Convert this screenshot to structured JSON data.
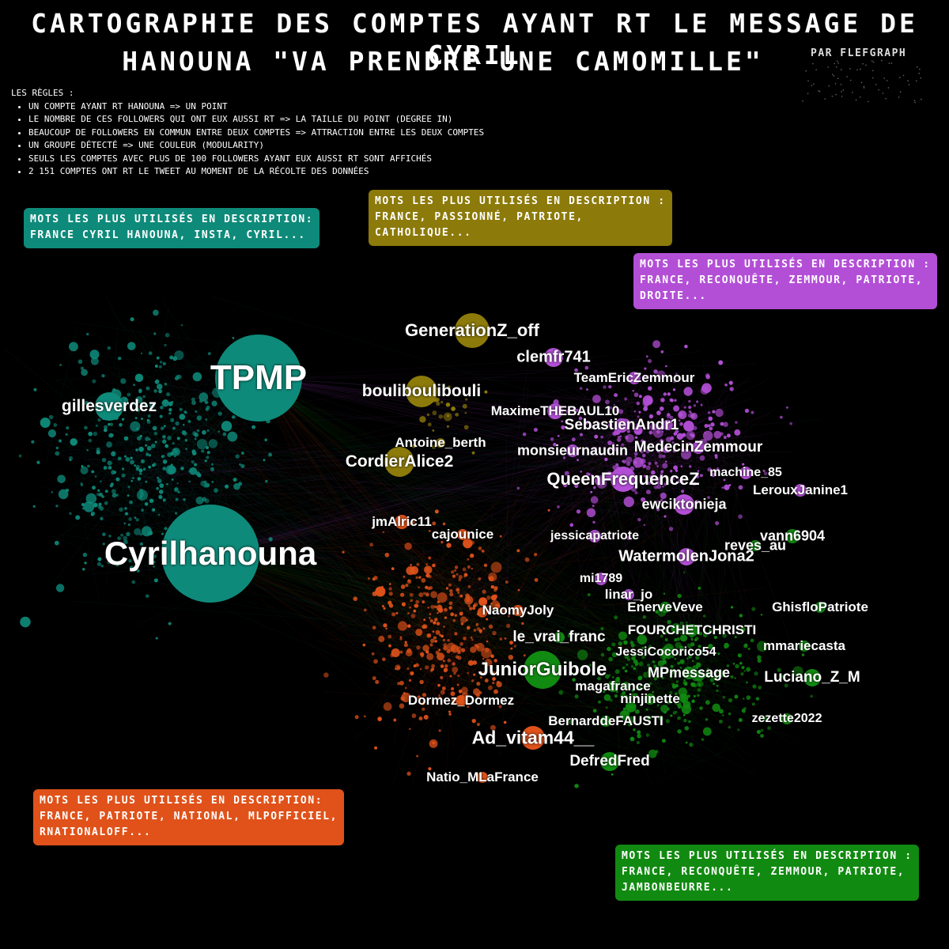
{
  "title": {
    "line1": "CARTOGRAPHIE DES COMPTES AYANT RT LE MESSAGE DE CYRIL",
    "line2": "HANOUNA \"VA PRENDRE UNE CAMOMILLE\"",
    "credit": "PAR FLEFGRAPH"
  },
  "rules": {
    "heading": "LES RÈGLES :",
    "items": [
      "UN COMPTE AYANT RT HANOUNA => UN POINT",
      "LE NOMBRE DE CES FOLLOWERS QUI ONT EUX AUSSI RT => LA TAILLE DU POINT (DEGREE IN)",
      "BEAUCOUP DE FOLLOWERS EN COMMUN ENTRE DEUX COMPTES => ATTRACTION ENTRE LES DEUX COMPTES",
      "UN GROUPE DÉTECTÉ => UNE COULEUR (MODULARITY)",
      "SEULS LES COMPTES AVEC PLUS DE 100 FOLLOWERS AYANT EUX AUSSI RT SONT AFFICHÉS",
      "2 151 COMPTES ONT RT LE TWEET AU MOMENT DE LA RÉCOLTE DES DONNÉES"
    ]
  },
  "colors": {
    "teal": "#0e8a7a",
    "olive": "#8c7a0a",
    "purple": "#b34fd6",
    "orange": "#e0521a",
    "green": "#118a11"
  },
  "groups": {
    "teal": [
      "MOTS LES PLUS UTILISÉS EN DESCRIPTION:",
      "FRANCE CYRIL HANOUNA, INSTA, CYRIL..."
    ],
    "olive": [
      "MOTS LES PLUS UTILISÉS EN DESCRIPTION :",
      "FRANCE, PASSIONNÉ, PATRIOTE,",
      "CATHOLIQUE..."
    ],
    "purple": [
      "MOTS LES PLUS UTILISÉS EN DESCRIPTION :",
      "FRANCE, RECONQUÊTE, ZEMMOUR, PATRIOTE,",
      "DROITE..."
    ],
    "orange": [
      "MOTS LES PLUS UTILISÉS EN DESCRIPTION:",
      "FRANCE, PATRIOTE, NATIONAL, MLPOFFICIEL,",
      "RNATIONALOFF..."
    ],
    "green": [
      "MOTS LES PLUS UTILISÉS EN DESCRIPTION :",
      "FRANCE, RECONQUÊTE, ZEMMOUR, PATRIOTE,",
      "JAMBONBEURRE..."
    ]
  },
  "accounts": [
    {
      "name": "TPMP",
      "group": "teal"
    },
    {
      "name": "Cyrilhanouna",
      "group": "teal"
    },
    {
      "name": "gillesverdez",
      "group": "teal"
    },
    {
      "name": "GenerationZ_off",
      "group": "olive"
    },
    {
      "name": "boulibouliboul i",
      "group": "olive"
    },
    {
      "name": "CordierAlice2",
      "group": "olive"
    },
    {
      "name": "Antoine_berth",
      "group": "olive"
    },
    {
      "name": "clemfr741",
      "group": "purple"
    },
    {
      "name": "TeamEricZemmour",
      "group": "purple"
    },
    {
      "name": "MaximeTHEBAUL10",
      "group": "purple"
    },
    {
      "name": "SebastienAndr1",
      "group": "purple"
    },
    {
      "name": "monsieurnaudin",
      "group": "purple"
    },
    {
      "name": "MedecinZemmour",
      "group": "purple"
    },
    {
      "name": "QueenFrequenceZ",
      "group": "purple"
    },
    {
      "name": "machine_85",
      "group": "purple"
    },
    {
      "name": "LerouxJanine1",
      "group": "purple"
    },
    {
      "name": "ewciktonieja",
      "group": "purple"
    },
    {
      "name": "jessicapatriote",
      "group": "purple"
    },
    {
      "name": "WatermolenJona2",
      "group": "purple"
    },
    {
      "name": "mi1789",
      "group": "purple"
    },
    {
      "name": "linar_jo",
      "group": "purple"
    },
    {
      "name": "jmAlric11",
      "group": "orange"
    },
    {
      "name": "cajounice",
      "group": "orange"
    },
    {
      "name": "NaomyJoly",
      "group": "orange"
    },
    {
      "name": "Dormez_Dormez",
      "group": "orange"
    },
    {
      "name": "Ad_vitam44__",
      "group": "orange"
    },
    {
      "name": "Natio_MLaFrance",
      "group": "orange"
    },
    {
      "name": "vann6904",
      "group": "green"
    },
    {
      "name": "reves_au",
      "group": "green"
    },
    {
      "name": "EnerveVeve",
      "group": "green"
    },
    {
      "name": "GhisfloPatriote",
      "group": "green"
    },
    {
      "name": "le_vrai_franc",
      "group": "green"
    },
    {
      "name": "FOURCHETCHRISTI",
      "group": "green"
    },
    {
      "name": "mmariecasta",
      "group": "green"
    },
    {
      "name": "JessiCocorico54",
      "group": "green"
    },
    {
      "name": "JuniorGuibole",
      "group": "green"
    },
    {
      "name": "MPmessage",
      "group": "green"
    },
    {
      "name": "Luciano_Z_M",
      "group": "green"
    },
    {
      "name": "magafrance",
      "group": "green"
    },
    {
      "name": "ninjinette",
      "group": "green"
    },
    {
      "name": "BernarddeFAUSTI",
      "group": "green"
    },
    {
      "name": "zezette2022",
      "group": "green"
    },
    {
      "name": "DefredFred",
      "group": "green"
    }
  ]
}
